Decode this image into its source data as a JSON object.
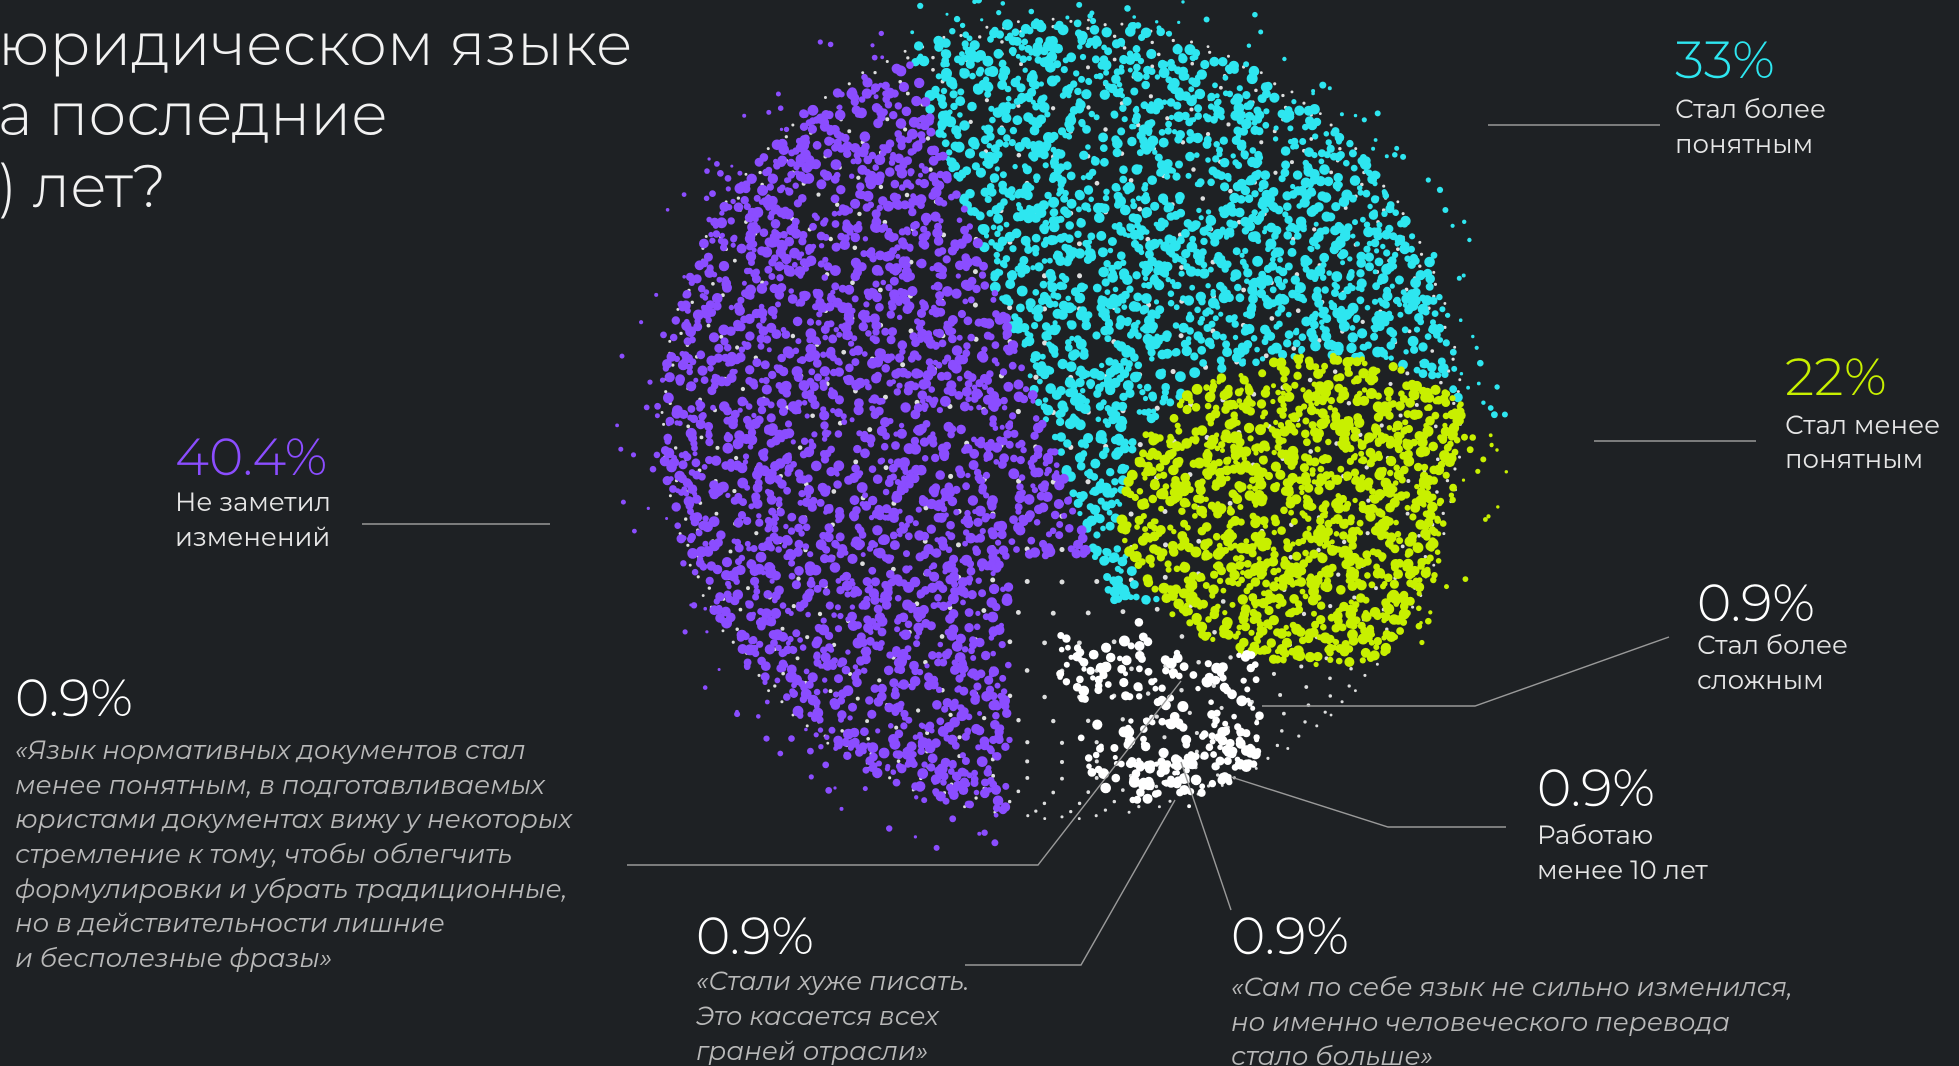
{
  "chart_data": {
    "type": "pie",
    "title": [
      "юридическом языке",
      "а последние",
      ") лет?"
    ],
    "categories": [
      [
        "Стал более",
        "понятным"
      ],
      [
        "Стал менее",
        "понятным"
      ],
      [
        "Не заметил",
        "изменений"
      ],
      [
        "Стал более",
        "сложным"
      ],
      [
        "Работаю",
        "менее 10 лет"
      ],
      [
        "«Язык нормативных документов стал",
        "менее понятным, в подготавливаемых",
        "юристами документах вижу у некоторых",
        "стремление к тому, чтобы облегчить",
        "формулировки и убрать традиционные,",
        "но в действительности лишние",
        "и бесполезные фразы»"
      ],
      [
        "«Стали хуже писать.",
        "Это касается всех",
        "граней отрасли»"
      ],
      [
        "«Сам по себе язык не сильно изменился,",
        "но именно человеческого перевода",
        "стало больше»"
      ]
    ],
    "values": [
      33,
      22,
      40.4,
      0.9,
      0.9,
      0.9,
      0.9,
      0.9
    ],
    "value_labels": [
      "33%",
      "22%",
      "40.4%",
      "0.9%",
      "0.9%",
      "0.9%",
      "0.9%",
      "0.9%"
    ],
    "colors": [
      "#2ee6f0",
      "#c8f000",
      "#8b4dff",
      "#ffffff",
      "#ffffff",
      "#ffffff",
      "#ffffff",
      "#ffffff"
    ]
  }
}
